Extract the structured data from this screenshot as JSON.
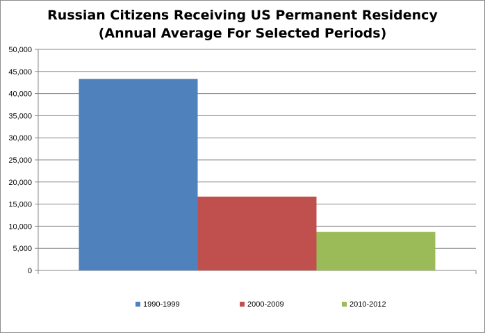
{
  "chart_data": {
    "type": "bar",
    "title": "Russian Citizens Receiving US Permanent Residency",
    "subtitle": "(Annual Average For Selected Periods)",
    "xlabel": "",
    "ylabel": "",
    "ylim": [
      0,
      50000
    ],
    "yticks": [
      "0",
      "5,000",
      "10,000",
      "15,000",
      "20,000",
      "25,000",
      "30,000",
      "35,000",
      "40,000",
      "45,000",
      "50,000"
    ],
    "ytick_values": [
      0,
      5000,
      10000,
      15000,
      20000,
      25000,
      30000,
      35000,
      40000,
      45000,
      50000
    ],
    "grid": true,
    "legend_position": "bottom",
    "series": [
      {
        "name": "1990-1999",
        "values": [
          43300
        ],
        "color": "#4F81BD"
      },
      {
        "name": "2000-2009",
        "values": [
          16700
        ],
        "color": "#C0504D"
      },
      {
        "name": "2010-2012",
        "values": [
          8700
        ],
        "color": "#9BBB59"
      }
    ]
  }
}
